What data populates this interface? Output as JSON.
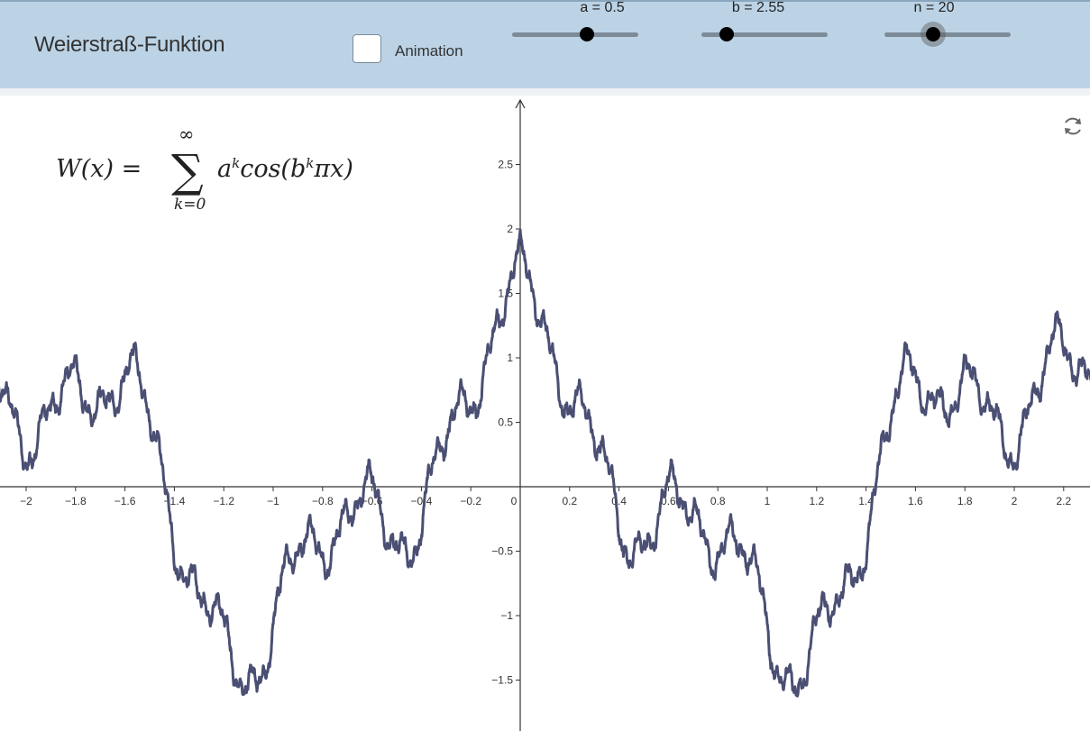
{
  "app": {
    "title": "Weierstraß-Funktion"
  },
  "toolbar": {
    "animation_label": "Animation",
    "animation_checked": false,
    "sliders": [
      {
        "label": "a = 0.5",
        "value": 0.5
      },
      {
        "label": "b = 2.55",
        "value": 2.55
      },
      {
        "label": "n = 20",
        "value": 20
      }
    ]
  },
  "formula": {
    "lhs": "W(x) =",
    "sum_upper": "∞",
    "sum_lower": "k=0",
    "term_base_a": "a",
    "term_exp_k": "k",
    "term_cos": "cos(b",
    "term_exp_k2": "k",
    "term_tail": "πx)"
  },
  "icons": {
    "refresh": "refresh-icon"
  },
  "colors": {
    "topbar": "#bcd3e6",
    "curve": "#4a4f73",
    "axis": "#333333"
  },
  "chart_data": {
    "type": "line",
    "function": "W(x) = sum_{k=0}^{n} a^k cos(b^k π x)",
    "params": {
      "a": 0.5,
      "b": 2.55,
      "n": 20
    },
    "xlim": [
      -2.1,
      2.3
    ],
    "ylim": [
      -1.75,
      2.9
    ],
    "x_ticks": [
      -2,
      -1.8,
      -1.6,
      -1.4,
      -1.2,
      -1,
      -0.8,
      -0.6,
      -0.4,
      -0.2,
      0,
      0.2,
      0.4,
      0.6,
      0.8,
      1,
      1.2,
      1.4,
      1.6,
      1.8,
      2,
      2.2
    ],
    "x_tick_labels": [
      "-2",
      "-1.8",
      "-1.6",
      "-1.4",
      "-1.2",
      "-1",
      "-0.8",
      "-0.6",
      "-0.4",
      "-0.2",
      "0",
      "0.2",
      "0.4",
      "0.6",
      "0.8",
      "1",
      "1.2",
      "1.4",
      "1.6",
      "1.8",
      "2",
      "2.2"
    ],
    "y_ticks": [
      -1.5,
      -1,
      -0.5,
      0.5,
      1,
      1.5,
      2,
      2.5
    ],
    "y_tick_labels": [
      "-1.5",
      "-1",
      "-0.5",
      "0.5",
      "1",
      "1.5",
      "2",
      "2.5"
    ],
    "grid": false
  }
}
